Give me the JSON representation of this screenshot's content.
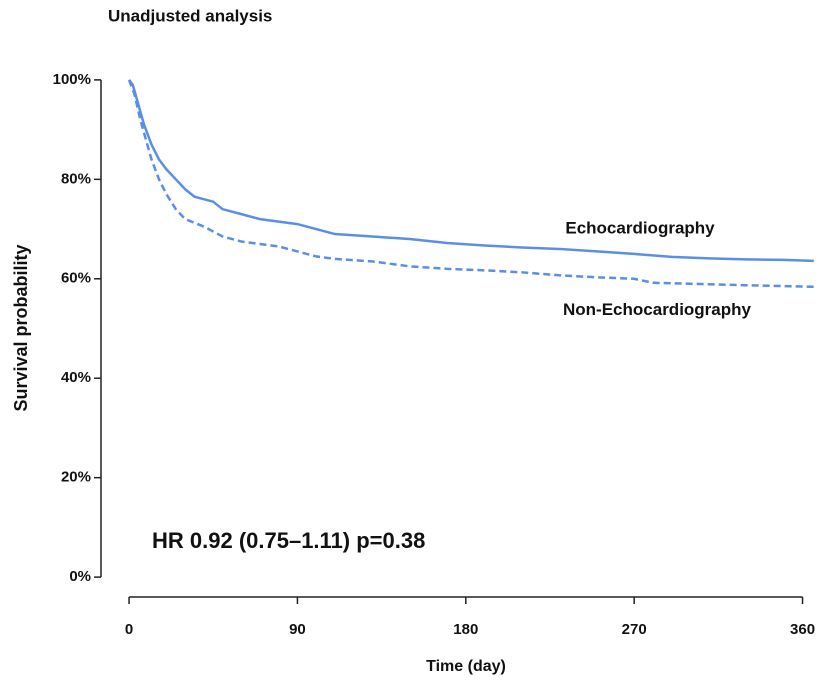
{
  "chart_data": {
    "type": "line",
    "title": "Unadjusted analysis",
    "x_label": "Time (day)",
    "y_label": "Survival probability",
    "annotation": "HR 0.92 (0.75–1.11) p=0.38",
    "xlim": [
      -15,
      372
    ],
    "ylim": [
      -0.04,
      1.04
    ],
    "xticks": [
      0,
      90,
      180,
      270,
      360
    ],
    "yticks": [
      {
        "value": 0,
        "label": "0%"
      },
      {
        "value": 0.2,
        "label": "20%"
      },
      {
        "value": 0.4,
        "label": "40%"
      },
      {
        "value": 0.6,
        "label": "60%"
      },
      {
        "value": 0.8,
        "label": "80%"
      },
      {
        "value": 1,
        "label": "100%"
      }
    ],
    "series": [
      {
        "name": "Echocardiography",
        "color": "#5b8ee6",
        "dash": "solid",
        "x": [
          0,
          2,
          5,
          8,
          12,
          16,
          20,
          25,
          30,
          35,
          45,
          50,
          60,
          70,
          80,
          90,
          100,
          110,
          130,
          150,
          170,
          190,
          210,
          230,
          250,
          270,
          290,
          310,
          330,
          350,
          366
        ],
        "values": [
          1.0,
          0.99,
          0.95,
          0.91,
          0.87,
          0.84,
          0.82,
          0.8,
          0.78,
          0.765,
          0.755,
          0.74,
          0.73,
          0.72,
          0.715,
          0.71,
          0.7,
          0.69,
          0.685,
          0.68,
          0.672,
          0.667,
          0.663,
          0.66,
          0.655,
          0.65,
          0.644,
          0.641,
          0.639,
          0.638,
          0.636
        ]
      },
      {
        "name": "Non-Echocardiography",
        "color": "#5b8ee6",
        "dash": "dashed",
        "x": [
          0,
          3,
          6,
          9,
          12,
          16,
          20,
          25,
          30,
          40,
          50,
          60,
          70,
          80,
          90,
          100,
          110,
          130,
          150,
          170,
          190,
          210,
          230,
          250,
          270,
          280,
          300,
          330,
          366
        ],
        "values": [
          1.0,
          0.97,
          0.92,
          0.88,
          0.84,
          0.8,
          0.77,
          0.74,
          0.72,
          0.705,
          0.685,
          0.675,
          0.67,
          0.665,
          0.655,
          0.645,
          0.64,
          0.635,
          0.625,
          0.62,
          0.617,
          0.613,
          0.607,
          0.603,
          0.6,
          0.592,
          0.59,
          0.587,
          0.584
        ]
      }
    ]
  }
}
